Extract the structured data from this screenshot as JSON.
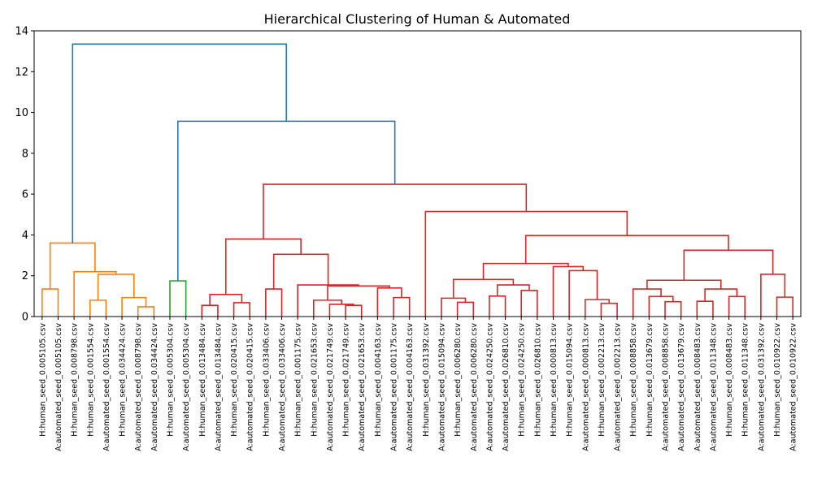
{
  "chart_data": {
    "type": "dendrogram",
    "title": "Hierarchical Clustering of Human & Automated",
    "xlabel": "",
    "ylabel": "",
    "ylim": [
      0,
      14
    ],
    "yticks": [
      0,
      2,
      4,
      6,
      8,
      10,
      12,
      14
    ],
    "grid": false,
    "colors": {
      "top": "#1f77b4",
      "orange": "#ff7f0e",
      "green": "#2ca02c",
      "red": "#d62728"
    },
    "leaves": [
      "H:human_seed_0.005105.csv",
      "A:automated_seed_0.005105.csv",
      "H:human_seed_0.008798.csv",
      "H:human_seed_0.001554.csv",
      "A:automated_seed_0.001554.csv",
      "H:human_seed_0.034424.csv",
      "A:automated_seed_0.008798.csv",
      "A:automated_seed_0.034424.csv",
      "H:human_seed_0.005304.csv",
      "A:automated_seed_0.005304.csv",
      "H:human_seed_0.013484.csv",
      "A:automated_seed_0.013484.csv",
      "H:human_seed_0.020415.csv",
      "A:automated_seed_0.020415.csv",
      "H:human_seed_0.033406.csv",
      "A:automated_seed_0.033406.csv",
      "H:human_seed_0.001175.csv",
      "H:human_seed_0.021653.csv",
      "A:automated_seed_0.021749.csv",
      "H:human_seed_0.021749.csv",
      "A:automated_seed_0.021653.csv",
      "H:human_seed_0.004163.csv",
      "A:automated_seed_0.001175.csv",
      "A:automated_seed_0.004163.csv",
      "H:human_seed_0.031392.csv",
      "A:automated_seed_0.015094.csv",
      "H:human_seed_0.006280.csv",
      "A:automated_seed_0.006280.csv",
      "A:automated_seed_0.024250.csv",
      "A:automated_seed_0.026810.csv",
      "H:human_seed_0.024250.csv",
      "H:human_seed_0.026810.csv",
      "H:human_seed_0.000813.csv",
      "H:human_seed_0.015094.csv",
      "A:automated_seed_0.000813.csv",
      "H:human_seed_0.002213.csv",
      "A:automated_seed_0.002213.csv",
      "H:human_seed_0.008858.csv",
      "H:human_seed_0.013679.csv",
      "A:automated_seed_0.008858.csv",
      "A:automated_seed_0.013679.csv",
      "A:automated_seed_0.008483.csv",
      "A:automated_seed_0.011348.csv",
      "H:human_seed_0.008483.csv",
      "H:human_seed_0.011348.csv",
      "A:automated_seed_0.031392.csv",
      "H:human_seed_0.010922.csv",
      "A:automated_seed_0.010922.csv"
    ],
    "merges": [
      {
        "children": [
          0,
          1
        ],
        "height": 1.35,
        "color": "orange"
      },
      {
        "children": [
          3,
          4
        ],
        "height": 0.8,
        "color": "orange"
      },
      {
        "children": [
          6,
          7
        ],
        "height": 0.48,
        "color": "orange"
      },
      {
        "children": [
          5,
          "m2"
        ],
        "height": 0.93,
        "color": "orange"
      },
      {
        "children": [
          "m1",
          "m3"
        ],
        "height": 2.07,
        "color": "orange"
      },
      {
        "children": [
          2,
          "m4"
        ],
        "height": 2.2,
        "color": "orange"
      },
      {
        "children": [
          "m0",
          "m5"
        ],
        "height": 3.6,
        "color": "orange"
      },
      {
        "children": [
          8,
          9
        ],
        "height": 1.75,
        "color": "green"
      },
      {
        "children": [
          10,
          11
        ],
        "height": 0.55,
        "color": "red"
      },
      {
        "children": [
          12,
          13
        ],
        "height": 0.68,
        "color": "red"
      },
      {
        "children": [
          "m8",
          "m9"
        ],
        "height": 1.08,
        "color": "red"
      },
      {
        "children": [
          14,
          15
        ],
        "height": 1.35,
        "color": "red"
      },
      {
        "children": [
          19,
          20
        ],
        "height": 0.55,
        "color": "red"
      },
      {
        "children": [
          18,
          "m12"
        ],
        "height": 0.6,
        "color": "red"
      },
      {
        "children": [
          17,
          "m13"
        ],
        "height": 0.8,
        "color": "red"
      },
      {
        "children": [
          22,
          23
        ],
        "height": 0.93,
        "color": "red"
      },
      {
        "children": [
          21,
          "m15"
        ],
        "height": 1.4,
        "color": "red"
      },
      {
        "children": [
          "m14",
          "m16"
        ],
        "height": 1.5,
        "color": "red"
      },
      {
        "children": [
          16,
          "m17"
        ],
        "height": 1.55,
        "color": "red"
      },
      {
        "children": [
          "m11",
          "m18"
        ],
        "height": 3.05,
        "color": "red"
      },
      {
        "children": [
          "m10",
          "m19"
        ],
        "height": 3.8,
        "color": "red"
      },
      {
        "children": [
          26,
          27
        ],
        "height": 0.7,
        "color": "red"
      },
      {
        "children": [
          25,
          "m21"
        ],
        "height": 0.9,
        "color": "red"
      },
      {
        "children": [
          28,
          29
        ],
        "height": 1.0,
        "color": "red"
      },
      {
        "children": [
          30,
          31
        ],
        "height": 1.28,
        "color": "red"
      },
      {
        "children": [
          "m23",
          "m24"
        ],
        "height": 1.55,
        "color": "red"
      },
      {
        "children": [
          "m22",
          "m25"
        ],
        "height": 1.82,
        "color": "red"
      },
      {
        "children": [
          35,
          36
        ],
        "height": 0.65,
        "color": "red"
      },
      {
        "children": [
          34,
          "m27"
        ],
        "height": 0.83,
        "color": "red"
      },
      {
        "children": [
          33,
          "m28"
        ],
        "height": 2.25,
        "color": "red"
      },
      {
        "children": [
          32,
          "m29"
        ],
        "height": 2.45,
        "color": "red"
      },
      {
        "children": [
          "m26",
          "m30"
        ],
        "height": 2.6,
        "color": "red"
      },
      {
        "children": [
          39,
          40
        ],
        "height": 0.73,
        "color": "red"
      },
      {
        "children": [
          38,
          "m32"
        ],
        "height": 0.98,
        "color": "red"
      },
      {
        "children": [
          37,
          "m33"
        ],
        "height": 1.35,
        "color": "red"
      },
      {
        "children": [
          41,
          42
        ],
        "height": 0.75,
        "color": "red"
      },
      {
        "children": [
          43,
          44
        ],
        "height": 0.98,
        "color": "red"
      },
      {
        "children": [
          "m35",
          "m36"
        ],
        "height": 1.35,
        "color": "red"
      },
      {
        "children": [
          "m34",
          "m37"
        ],
        "height": 1.78,
        "color": "red"
      },
      {
        "children": [
          46,
          47
        ],
        "height": 0.95,
        "color": "red"
      },
      {
        "children": [
          45,
          "m39"
        ],
        "height": 2.07,
        "color": "red"
      },
      {
        "children": [
          "m38",
          "m40"
        ],
        "height": 3.25,
        "color": "red"
      },
      {
        "children": [
          "m31",
          "m41"
        ],
        "height": 3.97,
        "color": "red"
      },
      {
        "children": [
          24,
          "m42"
        ],
        "height": 5.15,
        "color": "red"
      },
      {
        "children": [
          "m20",
          "m43"
        ],
        "height": 6.48,
        "color": "red"
      },
      {
        "children": [
          "m7",
          "m44"
        ],
        "height": 9.57,
        "color": "top"
      },
      {
        "children": [
          "m6",
          "m45"
        ],
        "height": 13.35,
        "color": "top"
      }
    ]
  }
}
